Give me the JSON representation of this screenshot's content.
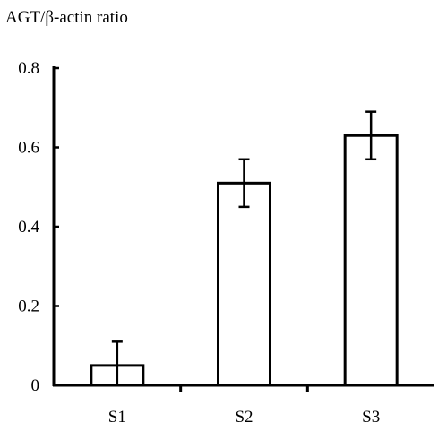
{
  "chart_data": {
    "type": "bar",
    "title": "",
    "xlabel": "",
    "ylabel": "AGT/β-actin ratio",
    "categories": [
      "S1",
      "S2",
      "S3"
    ],
    "values": [
      0.05,
      0.51,
      0.63
    ],
    "errors": [
      0.06,
      0.06,
      0.06
    ],
    "ylim": [
      0,
      0.8
    ],
    "yticks": [
      0,
      0.2,
      0.4,
      0.6,
      0.8
    ],
    "ytick_labels": [
      "0",
      "0.2",
      "0.4",
      "0.6",
      "0.8"
    ],
    "grid": false,
    "legend": "none",
    "colors": {
      "bar_fill": "#ffffff",
      "bar_stroke": "#000000",
      "axis": "#000000"
    }
  }
}
